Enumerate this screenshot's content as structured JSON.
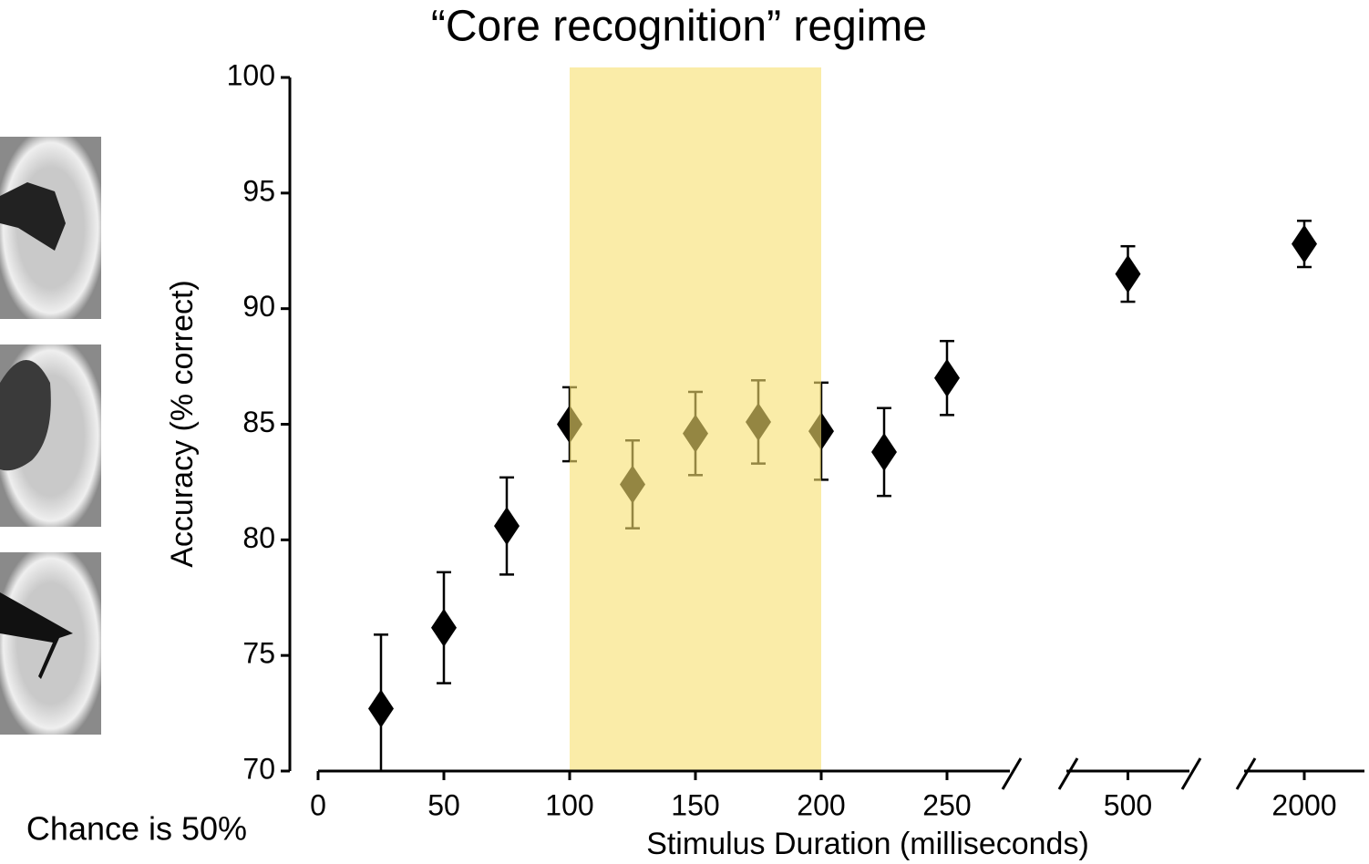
{
  "chart_data": {
    "type": "scatter",
    "title": "“Core recognition” regime",
    "x_label": "Stimulus Duration (milliseconds)",
    "y_label": "Accuracy (% correct)",
    "note": "Chance is 50%",
    "x": [
      25,
      50,
      75,
      100,
      125,
      150,
      175,
      200,
      225,
      250,
      500,
      2000
    ],
    "values": [
      72.7,
      76.2,
      80.6,
      85.0,
      82.4,
      84.6,
      85.1,
      84.7,
      83.8,
      87.0,
      91.5,
      92.8
    ],
    "errors": [
      3.2,
      2.4,
      2.1,
      1.6,
      1.9,
      1.8,
      1.8,
      2.1,
      1.9,
      1.6,
      1.2,
      1.0
    ],
    "color": "#000000",
    "x_segments": [
      {
        "xlim": [
          0,
          275
        ],
        "xticks": [
          0,
          50,
          100,
          150,
          200,
          250
        ]
      },
      {
        "xlim": [
          475,
          525
        ],
        "xticks": [
          500
        ]
      },
      {
        "xlim": [
          1975,
          2025
        ],
        "xticks": [
          2000
        ]
      }
    ],
    "ylim": [
      70,
      100
    ],
    "yticks": [
      70,
      75,
      80,
      85,
      90,
      95,
      100
    ],
    "highlight": {
      "x": [
        100,
        200
      ],
      "color": "#f7df6e"
    },
    "grid": false
  }
}
